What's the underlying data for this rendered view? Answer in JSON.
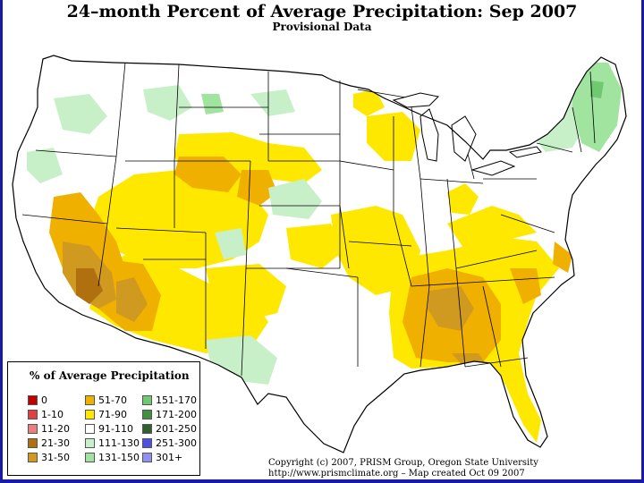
{
  "map": {
    "title": "24–month Percent of Average Precipitation: Sep 2007",
    "subtitle": "Provisional Data",
    "base_color": "#ffffff",
    "border_color": "#000000"
  },
  "legend": {
    "title": "% of Average Precipitation",
    "items": [
      {
        "label": "0",
        "color": "#c00000"
      },
      {
        "label": "1-10",
        "color": "#e04040"
      },
      {
        "label": "11-20",
        "color": "#e88080"
      },
      {
        "label": "21-30",
        "color": "#b07010"
      },
      {
        "label": "31-50",
        "color": "#d09a20"
      },
      {
        "label": "51-70",
        "color": "#f0b000"
      },
      {
        "label": "71-90",
        "color": "#ffe800"
      },
      {
        "label": "91-110",
        "color": "#ffffff"
      },
      {
        "label": "111-130",
        "color": "#c8f0c8"
      },
      {
        "label": "131-150",
        "color": "#a0e4a0"
      },
      {
        "label": "151-170",
        "color": "#70c870"
      },
      {
        "label": "171-200",
        "color": "#409040"
      },
      {
        "label": "201-250",
        "color": "#306030"
      },
      {
        "label": "251-300",
        "color": "#5050e0"
      },
      {
        "label": "301+",
        "color": "#9090f0"
      }
    ]
  },
  "credits": {
    "line1": "Copyright (c) 2007, PRISM Group, Oregon State University",
    "line2": "http://www.prismclimate.org  –  Map created Oct 09 2007"
  }
}
